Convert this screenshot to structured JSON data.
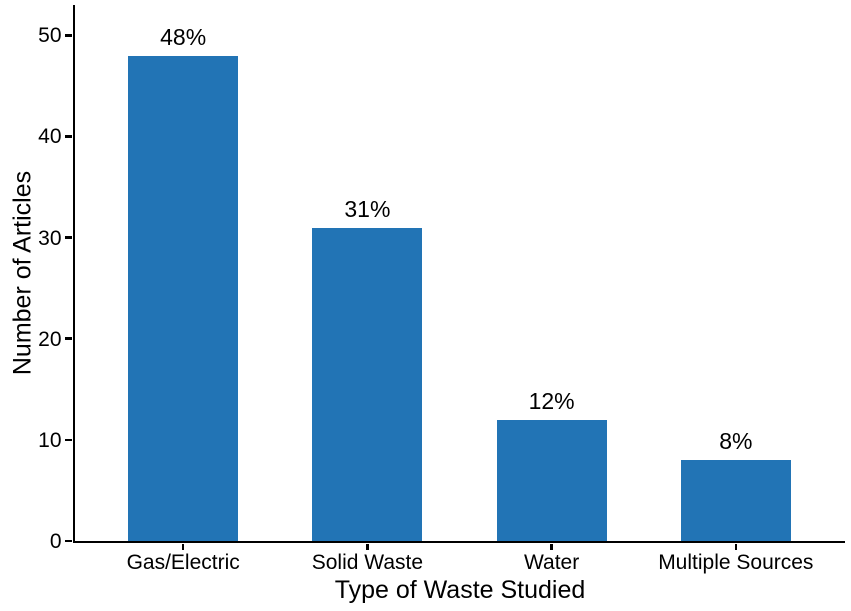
{
  "chart_data": {
    "type": "bar",
    "title": "",
    "xlabel": "Type of Waste Studied",
    "ylabel": "Number of Articles",
    "categories": [
      "Gas/Electric",
      "Solid Waste",
      "Water",
      "Multiple Sources"
    ],
    "values": [
      48,
      31,
      12,
      8
    ],
    "bar_labels": [
      "48%",
      "31%",
      "12%",
      "8%"
    ],
    "yticks": [
      0,
      10,
      20,
      30,
      40,
      50
    ],
    "ylim": [
      0,
      53
    ],
    "grid": false,
    "legend": null,
    "colors": {
      "bar": "#2274B5",
      "axis": "#000000",
      "text": "#000000",
      "background": "#FFFFFF"
    }
  }
}
